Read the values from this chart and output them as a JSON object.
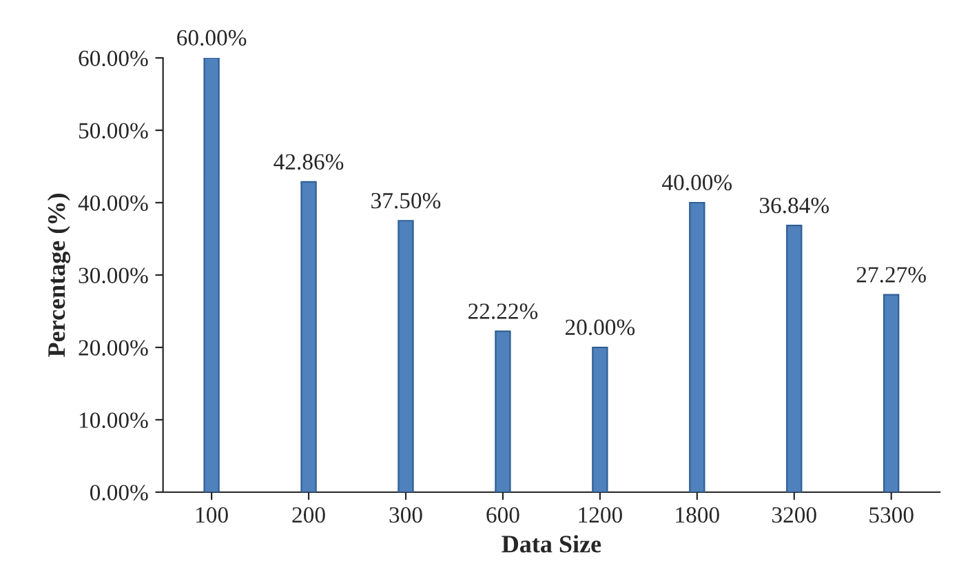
{
  "chart_data": {
    "type": "bar",
    "xlabel": "Data Size",
    "ylabel": "Percentage (%)",
    "categories": [
      "100",
      "200",
      "300",
      "600",
      "1200",
      "1800",
      "3200",
      "5300"
    ],
    "values": [
      60,
      42.86,
      37.5,
      22.22,
      20,
      40,
      36.84,
      27.27
    ],
    "value_labels": [
      "60.00%",
      "42.86%",
      "37.50%",
      "22.22%",
      "20.00%",
      "40.00%",
      "36.84%",
      "27.27%"
    ],
    "color": "#4f81bd",
    "ylim": [
      0,
      60
    ],
    "yticks": [
      {
        "value": 0,
        "label": "0.00%"
      },
      {
        "value": 10,
        "label": "10.00%"
      },
      {
        "value": 20,
        "label": "20.00%"
      },
      {
        "value": 30,
        "label": "30.00%"
      },
      {
        "value": 40,
        "label": "40.00%"
      },
      {
        "value": 50,
        "label": "50.00%"
      },
      {
        "value": 60,
        "label": "60.00%"
      }
    ],
    "grid": false,
    "legend": false
  }
}
